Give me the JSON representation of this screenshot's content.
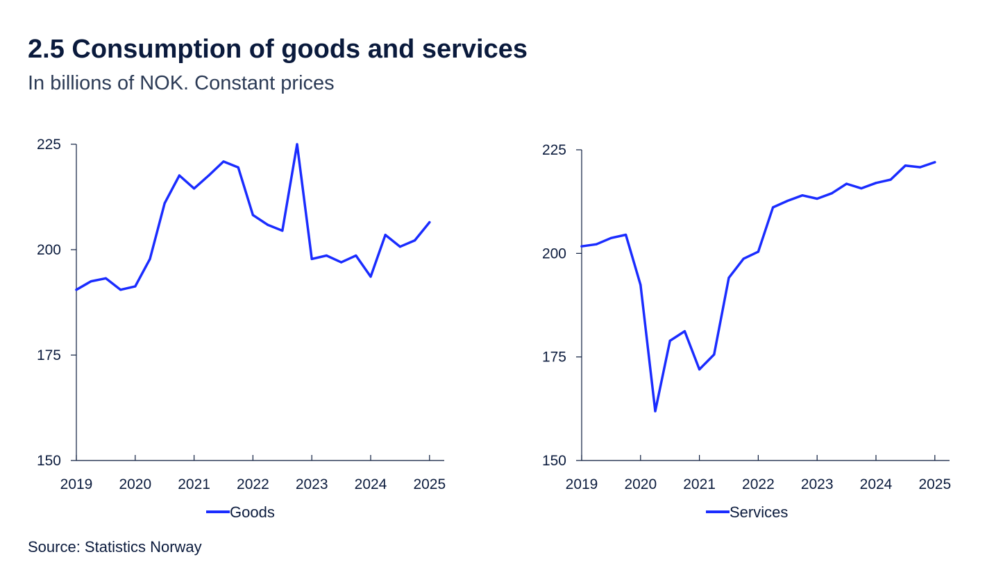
{
  "header": {
    "title": "2.5 Consumption of goods and services",
    "subtitle": "In billions of NOK. Constant prices"
  },
  "footer": {
    "source": "Source: Statistics Norway"
  },
  "colors": {
    "series": "#1a2cff",
    "axis": "#0a1a3c"
  },
  "chart_data": [
    {
      "type": "line",
      "title": "",
      "xlabel": "",
      "ylabel": "",
      "xlim": [
        2019,
        2025.25
      ],
      "ylim": [
        150,
        225
      ],
      "yticks": [
        150,
        175,
        200,
        225
      ],
      "xticks": [
        2019,
        2020,
        2021,
        2022,
        2023,
        2024,
        2025
      ],
      "xtick_labels": [
        "2019",
        "2020",
        "2021",
        "2022",
        "2023",
        "2024",
        "2025"
      ],
      "ytick_labels": [
        "150",
        "175",
        "200",
        "225"
      ],
      "legend": "bottom-center",
      "series": [
        {
          "name": "Goods",
          "x": [
            2019.0,
            2019.25,
            2019.5,
            2019.75,
            2020.0,
            2020.25,
            2020.5,
            2020.75,
            2021.0,
            2021.25,
            2021.5,
            2021.75,
            2022.0,
            2022.25,
            2022.5,
            2022.75,
            2023.0,
            2023.25,
            2023.5,
            2023.75,
            2024.0,
            2024.25,
            2024.5,
            2024.75,
            2025.0
          ],
          "values": [
            190.5,
            192.5,
            193.2,
            190.5,
            191.3,
            197.8,
            211.0,
            217.6,
            214.5,
            217.6,
            220.9,
            219.5,
            208.2,
            205.9,
            204.5,
            225.0,
            197.8,
            198.6,
            197.0,
            198.6,
            193.6,
            203.5,
            200.7,
            202.2,
            206.5
          ]
        }
      ]
    },
    {
      "type": "line",
      "title": "",
      "xlabel": "",
      "ylabel": "",
      "xlim": [
        2019,
        2025.25
      ],
      "ylim": [
        150,
        225
      ],
      "yticks": [
        150,
        175,
        200,
        225
      ],
      "xticks": [
        2019,
        2020,
        2021,
        2022,
        2023,
        2024,
        2025
      ],
      "xtick_labels": [
        "2019",
        "2020",
        "2021",
        "2022",
        "2023",
        "2024",
        "2025"
      ],
      "ytick_labels": [
        "150",
        "175",
        "200",
        "225"
      ],
      "legend": "bottom-center",
      "series": [
        {
          "name": "Services",
          "x": [
            2019.0,
            2019.25,
            2019.5,
            2019.75,
            2020.0,
            2020.25,
            2020.5,
            2020.75,
            2021.0,
            2021.25,
            2021.5,
            2021.75,
            2022.0,
            2022.25,
            2022.5,
            2022.75,
            2023.0,
            2023.25,
            2023.5,
            2023.75,
            2024.0,
            2024.25,
            2024.5,
            2024.75,
            2025.0
          ],
          "values": [
            201.7,
            202.2,
            203.7,
            204.5,
            192.4,
            161.9,
            178.9,
            181.2,
            172.0,
            175.6,
            194.1,
            198.7,
            200.4,
            211.1,
            212.7,
            214.0,
            213.2,
            214.5,
            216.8,
            215.7,
            217.0,
            217.8,
            221.2,
            220.8,
            222.0
          ]
        }
      ]
    }
  ]
}
